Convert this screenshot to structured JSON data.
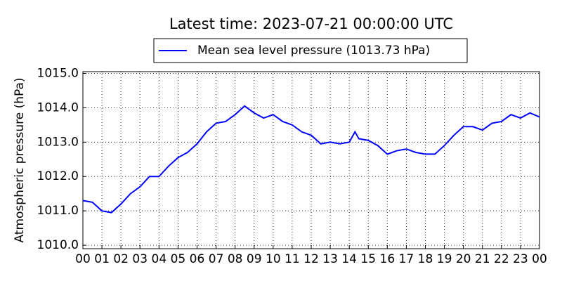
{
  "chart_data": {
    "type": "line",
    "title": "Latest time: 2023-07-21 00:00:00 UTC",
    "y_label": "Atmospheric pressure (hPa)",
    "x": [
      0,
      0.5,
      1,
      1.5,
      2,
      2.5,
      3,
      3.5,
      4,
      4.5,
      5,
      5.5,
      6,
      6.5,
      7,
      7.5,
      8,
      8.5,
      9,
      9.5,
      10,
      10.5,
      11,
      11.5,
      12,
      12.5,
      13,
      13.5,
      14,
      14.3,
      14.5,
      15,
      15.5,
      16,
      16.5,
      17,
      17.5,
      18,
      18.5,
      19,
      19.5,
      20,
      20.5,
      21,
      21.5,
      22,
      22.5,
      23,
      23.5,
      24
    ],
    "series": [
      {
        "name": "Mean sea level pressure (1013.73 hPa)",
        "color": "#0000ff",
        "values": [
          1011.3,
          1011.25,
          1011.0,
          1010.95,
          1011.2,
          1011.5,
          1011.7,
          1012.0,
          1012.0,
          1012.3,
          1012.55,
          1012.7,
          1012.95,
          1013.3,
          1013.55,
          1013.6,
          1013.8,
          1014.05,
          1013.85,
          1013.7,
          1013.8,
          1013.6,
          1013.5,
          1013.3,
          1013.2,
          1012.95,
          1013.0,
          1012.95,
          1013.0,
          1013.3,
          1013.1,
          1013.05,
          1012.9,
          1012.65,
          1012.75,
          1012.8,
          1012.7,
          1012.65,
          1012.65,
          1012.9,
          1013.2,
          1013.45,
          1013.45,
          1013.35,
          1013.55,
          1013.6,
          1013.8,
          1013.7,
          1013.85,
          1013.73
        ]
      }
    ],
    "xlim": [
      0,
      24
    ],
    "ylim": [
      1009.9,
      1015.05
    ],
    "xticks": [
      {
        "value": 0,
        "label": "00"
      },
      {
        "value": 1,
        "label": "01"
      },
      {
        "value": 2,
        "label": "02"
      },
      {
        "value": 3,
        "label": "03"
      },
      {
        "value": 4,
        "label": "04"
      },
      {
        "value": 5,
        "label": "05"
      },
      {
        "value": 6,
        "label": "06"
      },
      {
        "value": 7,
        "label": "07"
      },
      {
        "value": 8,
        "label": "08"
      },
      {
        "value": 9,
        "label": "09"
      },
      {
        "value": 10,
        "label": "10"
      },
      {
        "value": 11,
        "label": "11"
      },
      {
        "value": 12,
        "label": "12"
      },
      {
        "value": 13,
        "label": "13"
      },
      {
        "value": 14,
        "label": "14"
      },
      {
        "value": 15,
        "label": "15"
      },
      {
        "value": 16,
        "label": "16"
      },
      {
        "value": 17,
        "label": "17"
      },
      {
        "value": 18,
        "label": "18"
      },
      {
        "value": 19,
        "label": "19"
      },
      {
        "value": 20,
        "label": "20"
      },
      {
        "value": 21,
        "label": "21"
      },
      {
        "value": 22,
        "label": "22"
      },
      {
        "value": 23,
        "label": "23"
      },
      {
        "value": 24,
        "label": "00"
      }
    ],
    "yticks": [
      {
        "value": 1010,
        "label": "1010.0"
      },
      {
        "value": 1011,
        "label": "1011.0"
      },
      {
        "value": 1012,
        "label": "1012.0"
      },
      {
        "value": 1013,
        "label": "1013.0"
      },
      {
        "value": 1014,
        "label": "1014.0"
      },
      {
        "value": 1015,
        "label": "1015.0"
      }
    ],
    "grid": true,
    "legend": "top"
  }
}
